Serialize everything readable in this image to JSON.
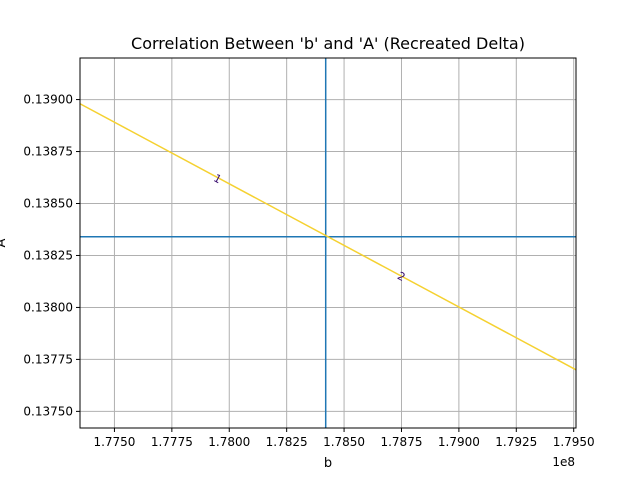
{
  "chart_data": {
    "type": "line",
    "title": "Correlation Between 'b' and 'A' (Recreated Delta)",
    "xlabel": "b",
    "ylabel": "A",
    "x_offset_label": "1e8",
    "x_scale_factor": 100000000,
    "xlim": [
      1.7735,
      1.7951
    ],
    "ylim": [
      0.13742,
      0.1392
    ],
    "x_ticks": [
      1.775,
      1.7775,
      1.78,
      1.7825,
      1.785,
      1.7875,
      1.79,
      1.7925,
      1.795
    ],
    "x_tick_labels": [
      "1.7750",
      "1.7775",
      "1.7800",
      "1.7825",
      "1.7850",
      "1.7875",
      "1.7900",
      "1.7925",
      "1.7950"
    ],
    "y_ticks": [
      0.1375,
      0.13775,
      0.138,
      0.13825,
      0.1385,
      0.13875,
      0.139
    ],
    "y_tick_labels": [
      "0.13750",
      "0.13775",
      "0.13800",
      "0.13825",
      "0.13850",
      "0.13875",
      "0.13900"
    ],
    "grid": true,
    "series": [
      {
        "x": [
          1.7735,
          1.7951
        ],
        "y": [
          0.13898,
          0.1377
        ],
        "color": "#f5d130"
      }
    ],
    "reference_lines": {
      "vertical_x": 1.7842,
      "horizontal_y": 0.13834,
      "color": "#1f77b4"
    },
    "contour_labels": [
      {
        "text": "1",
        "x": 1.7795,
        "y": 0.13862,
        "color": "#3b0f70"
      },
      {
        "text": "2",
        "x": 1.7875,
        "y": 0.13815,
        "color": "#3b0f70"
      }
    ]
  }
}
